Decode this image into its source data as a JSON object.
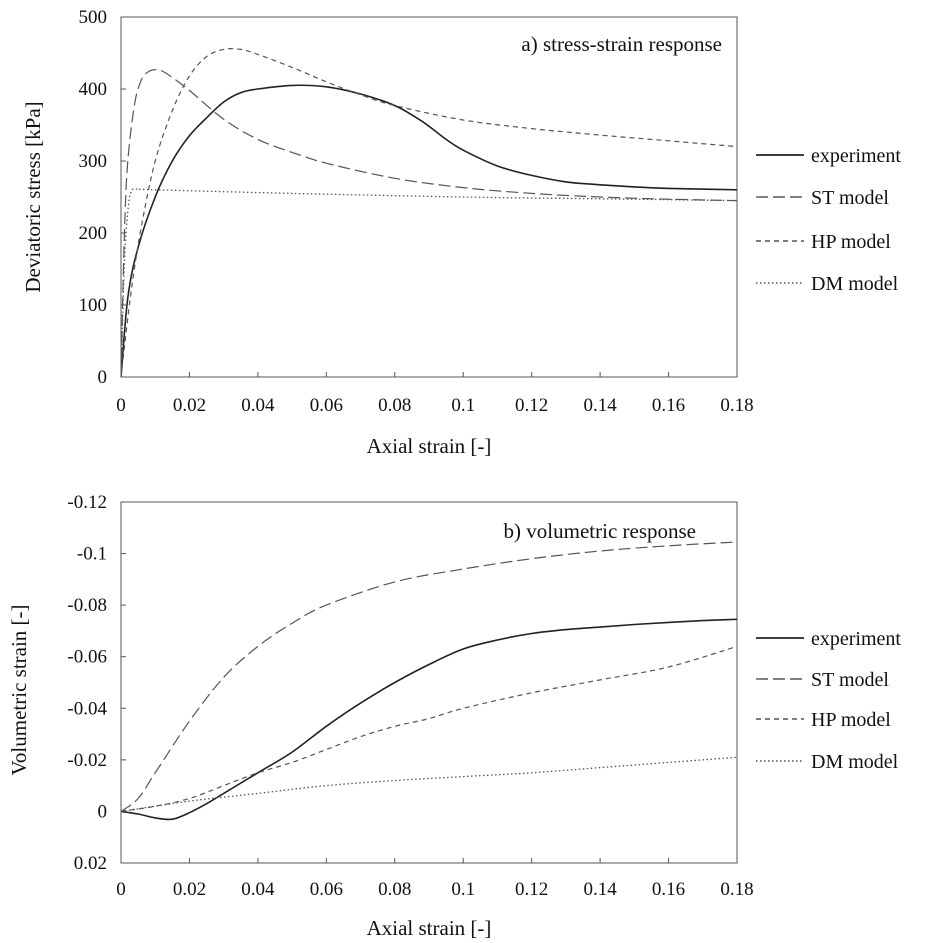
{
  "chart_data": [
    {
      "type": "line",
      "annotation": "a) stress-strain response",
      "xlabel": "Axial strain [-]",
      "ylabel": "Deviatoric stress [kPa]",
      "xlim": [
        0,
        0.18
      ],
      "ylim": [
        0,
        500
      ],
      "y_reversed": false,
      "xticks": [
        "0",
        "0.02",
        "0.04",
        "0.06",
        "0.08",
        "0.1",
        "0.12",
        "0.14",
        "0.16",
        "0.18"
      ],
      "yticks": [
        "0",
        "100",
        "200",
        "300",
        "400",
        "500"
      ],
      "grid": false,
      "legend": "right",
      "series": [
        {
          "name": "experiment",
          "style": "solid",
          "x": [
            0,
            0.002,
            0.005,
            0.01,
            0.015,
            0.02,
            0.025,
            0.03,
            0.035,
            0.04,
            0.05,
            0.06,
            0.07,
            0.08,
            0.088,
            0.095,
            0.1,
            0.11,
            0.12,
            0.13,
            0.14,
            0.15,
            0.16,
            0.18
          ],
          "y": [
            0,
            110,
            180,
            250,
            300,
            335,
            360,
            382,
            395,
            400,
            405,
            403,
            393,
            377,
            355,
            330,
            315,
            293,
            280,
            271,
            267,
            264,
            262,
            260
          ]
        },
        {
          "name": "ST model",
          "style": "dash",
          "x": [
            0,
            0.001,
            0.002,
            0.004,
            0.006,
            0.008,
            0.01,
            0.012,
            0.015,
            0.02,
            0.03,
            0.04,
            0.05,
            0.06,
            0.08,
            0.1,
            0.12,
            0.14,
            0.16,
            0.18
          ],
          "y": [
            0,
            200,
            300,
            380,
            413,
            424,
            427,
            425,
            416,
            398,
            358,
            330,
            312,
            297,
            276,
            263,
            255,
            250,
            247,
            245
          ]
        },
        {
          "name": "HP model",
          "style": "shortdash",
          "x": [
            0,
            0.003,
            0.006,
            0.01,
            0.015,
            0.02,
            0.025,
            0.03,
            0.035,
            0.04,
            0.05,
            0.06,
            0.07,
            0.08,
            0.1,
            0.12,
            0.14,
            0.16,
            0.18
          ],
          "y": [
            0,
            120,
            210,
            300,
            370,
            418,
            445,
            455,
            455,
            448,
            430,
            410,
            392,
            377,
            357,
            345,
            336,
            328,
            320
          ]
        },
        {
          "name": "DM model",
          "style": "dot",
          "x": [
            0,
            0.001,
            0.002,
            0.003,
            0.005,
            0.01,
            0.05,
            0.1,
            0.15,
            0.18
          ],
          "y": [
            0,
            160,
            230,
            258,
            261,
            260,
            255,
            250,
            247,
            245
          ]
        }
      ]
    },
    {
      "type": "line",
      "annotation": "b) volumetric response",
      "xlabel": "Axial strain [-]",
      "ylabel": "Volumetric strain [-]",
      "xlim": [
        0,
        0.18
      ],
      "ylim": [
        0.02,
        -0.12
      ],
      "y_reversed": true,
      "xticks": [
        "0",
        "0.02",
        "0.04",
        "0.06",
        "0.08",
        "0.1",
        "0.12",
        "0.14",
        "0.16",
        "0.18"
      ],
      "yticks": [
        "0.02",
        "0",
        "-0.02",
        "-0.04",
        "-0.06",
        "-0.08",
        "-0.1",
        "-0.12"
      ],
      "grid": false,
      "legend": "right",
      "series": [
        {
          "name": "experiment",
          "style": "solid",
          "x": [
            0,
            0.005,
            0.01,
            0.015,
            0.02,
            0.025,
            0.03,
            0.04,
            0.05,
            0.06,
            0.07,
            0.08,
            0.09,
            0.1,
            0.11,
            0.12,
            0.13,
            0.14,
            0.15,
            0.16,
            0.17,
            0.18
          ],
          "y": [
            0,
            0.001,
            0.0025,
            0.003,
            0.0005,
            -0.003,
            -0.007,
            -0.015,
            -0.023,
            -0.033,
            -0.042,
            -0.05,
            -0.057,
            -0.063,
            -0.0665,
            -0.069,
            -0.0705,
            -0.0715,
            -0.0725,
            -0.0733,
            -0.074,
            -0.0745
          ]
        },
        {
          "name": "ST model",
          "style": "dash",
          "x": [
            0,
            0.005,
            0.01,
            0.02,
            0.03,
            0.04,
            0.05,
            0.06,
            0.08,
            0.1,
            0.12,
            0.14,
            0.16,
            0.18
          ],
          "y": [
            0,
            -0.005,
            -0.015,
            -0.035,
            -0.052,
            -0.064,
            -0.073,
            -0.08,
            -0.089,
            -0.094,
            -0.098,
            -0.101,
            -0.103,
            -0.1045
          ]
        },
        {
          "name": "HP model",
          "style": "shortdash",
          "x": [
            0,
            0.01,
            0.02,
            0.03,
            0.04,
            0.05,
            0.06,
            0.07,
            0.08,
            0.09,
            0.1,
            0.12,
            0.14,
            0.16,
            0.18
          ],
          "y": [
            0,
            -0.002,
            -0.005,
            -0.01,
            -0.015,
            -0.019,
            -0.024,
            -0.029,
            -0.033,
            -0.036,
            -0.04,
            -0.046,
            -0.051,
            -0.056,
            -0.064
          ]
        },
        {
          "name": "DM model",
          "style": "dot",
          "x": [
            0,
            0.02,
            0.04,
            0.06,
            0.08,
            0.1,
            0.12,
            0.14,
            0.16,
            0.18
          ],
          "y": [
            0,
            -0.004,
            -0.007,
            -0.01,
            -0.012,
            -0.0135,
            -0.015,
            -0.017,
            -0.019,
            -0.021
          ]
        }
      ]
    }
  ]
}
